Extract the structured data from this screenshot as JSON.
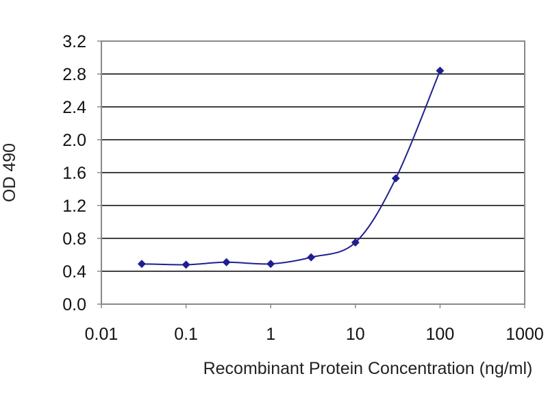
{
  "chart_data": {
    "type": "scatter",
    "title": "",
    "xlabel": "Recombinant Protein Concentration (ng/ml)",
    "ylabel": "OD 490",
    "x_scale": "log",
    "xlim": [
      0.01,
      1000
    ],
    "ylim": [
      0.0,
      3.2
    ],
    "x_ticks": [
      0.01,
      0.1,
      1,
      10,
      100,
      1000
    ],
    "x_tick_labels": [
      "0.01",
      "0.1",
      "1",
      "10",
      "100",
      "1000"
    ],
    "y_ticks": [
      0.0,
      0.4,
      0.8,
      1.2,
      1.6,
      2.0,
      2.4,
      2.8,
      3.2
    ],
    "y_tick_labels": [
      "0.0",
      "0.4",
      "0.8",
      "1.2",
      "1.6",
      "2.0",
      "2.4",
      "2.8",
      "3.2"
    ],
    "grid": "horizontal",
    "legend": "none",
    "series": [
      {
        "x": [
          0.03,
          0.1,
          0.3,
          1,
          3,
          10,
          30,
          100
        ],
        "y": [
          0.49,
          0.48,
          0.51,
          0.49,
          0.57,
          0.75,
          1.53,
          2.84
        ],
        "fitted_curve": true
      }
    ],
    "colors": {
      "series": "#1f1f8f",
      "grid": "#000000",
      "frame": "#888888",
      "background": "#ffffff"
    }
  }
}
